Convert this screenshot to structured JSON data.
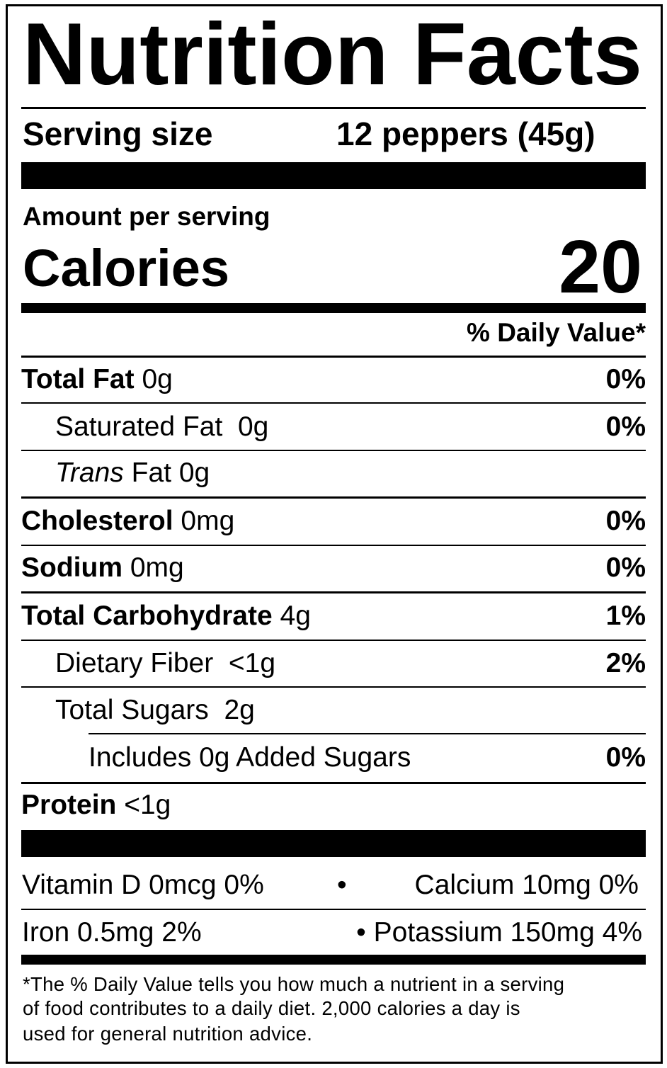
{
  "title": "Nutrition Facts",
  "serving": {
    "label": "Serving size",
    "value": "12 peppers (45g)"
  },
  "amount_label": "Amount per serving",
  "calories": {
    "label": "Calories",
    "value": 20
  },
  "dv_header": "% Daily Value*",
  "nutrients": [
    {
      "name": "Total Fat",
      "amount": "0g",
      "dv": "0%"
    },
    {
      "name": "Saturated Fat",
      "amount": "0g",
      "dv": "0%"
    },
    {
      "prefix": "Trans",
      "name": "Fat",
      "amount": "0g"
    },
    {
      "name": "Cholesterol",
      "amount": "0mg",
      "dv": "0%"
    },
    {
      "name": "Sodium",
      "amount": "0mg",
      "dv": "0%"
    },
    {
      "name": "Total Carbohydrate",
      "amount": "4g",
      "dv": "1%"
    },
    {
      "name": "Dietary Fiber",
      "amount": "<1g",
      "dv": "2%"
    },
    {
      "name": "Total Sugars",
      "amount": "2g"
    },
    {
      "name": "Includes 0g Added Sugars",
      "dv": "0%"
    },
    {
      "name": "Protein",
      "amount": "<1g"
    }
  ],
  "micronutrients": [
    "Vitamin D 0mcg 0%",
    "Calcium 10mg 0%",
    "Iron 0.5mg 2%",
    "Potassium 150mg 4%"
  ],
  "footnote": [
    "*The % Daily Value tells you how much a nutrient in a serving",
    "of food contributes to a daily diet. 2,000 calories a day is",
    "used for general nutrition advice."
  ]
}
